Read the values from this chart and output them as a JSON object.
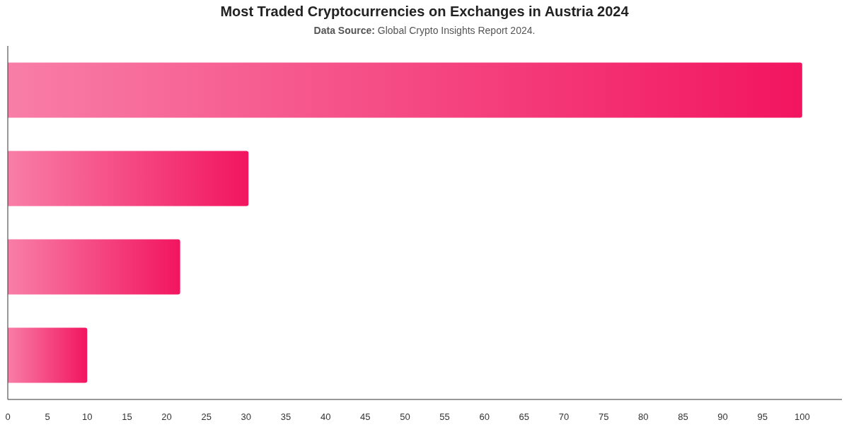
{
  "chart_data": {
    "type": "bar",
    "orientation": "horizontal",
    "title": "Most Traded Cryptocurrencies on Exchanges in Austria 2024",
    "subtitle": "Data Source: Global Crypto Insights Report 2024.",
    "categories": [
      null,
      null,
      null,
      null
    ],
    "values": [
      100,
      30.3,
      21.7,
      10
    ],
    "color": "#f2155f",
    "xlim": [
      0,
      105
    ],
    "xticks": [
      0,
      5,
      10,
      15,
      20,
      25,
      30,
      35,
      40,
      45,
      50,
      55,
      60,
      65,
      70,
      75,
      80,
      85,
      90,
      95,
      100
    ],
    "grid": false,
    "tick_labels": "x"
  }
}
